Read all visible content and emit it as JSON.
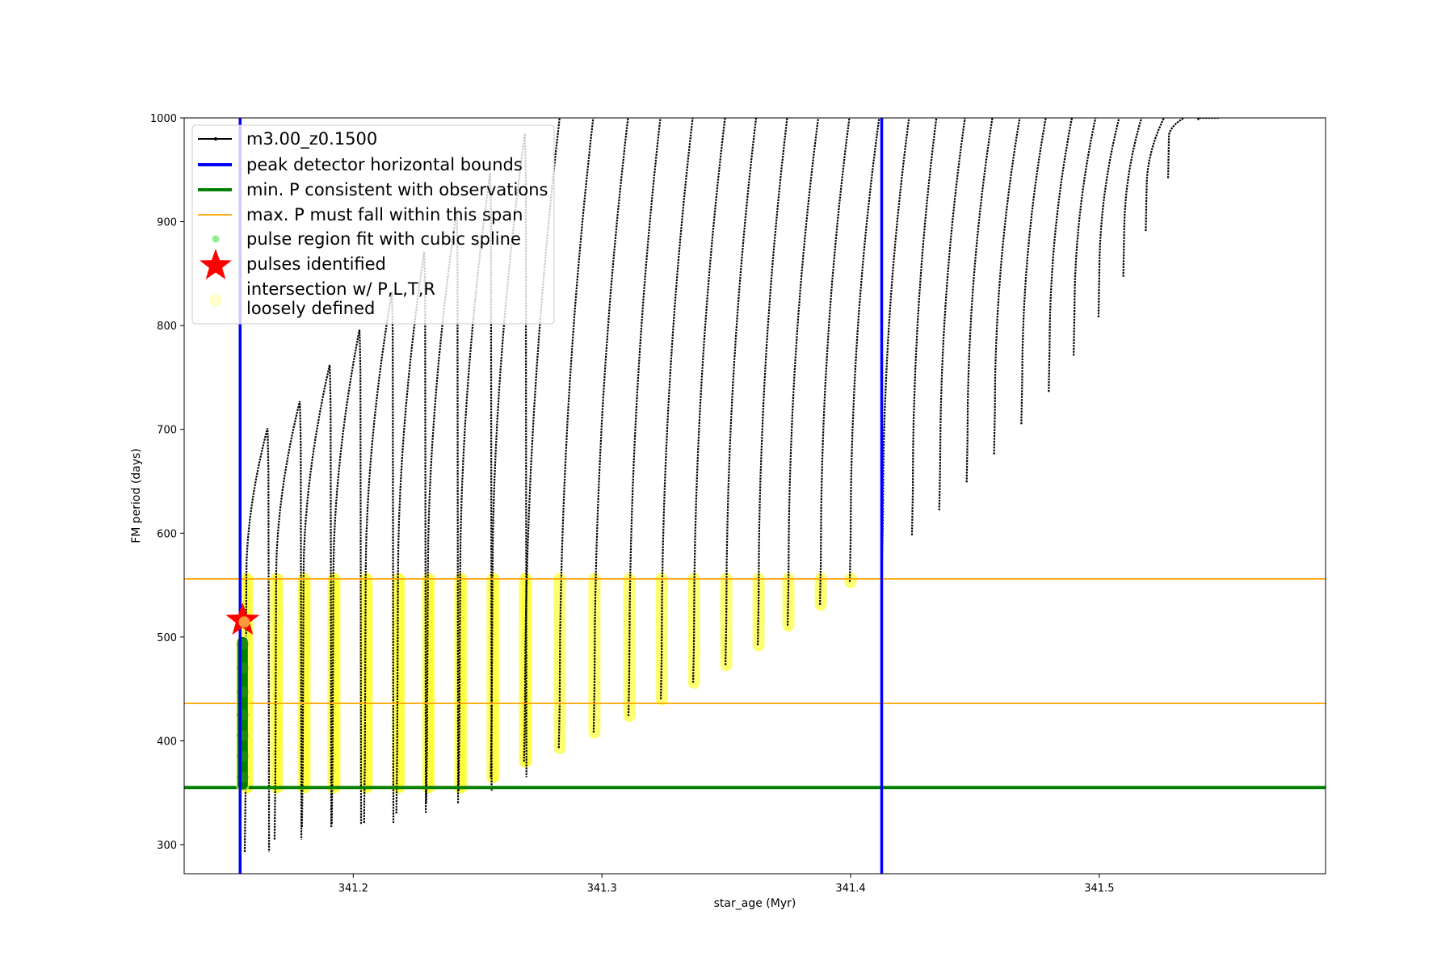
{
  "chart_data": {
    "type": "line",
    "title": "",
    "xlabel": "star_age (Myr)",
    "ylabel": "FM period (days)",
    "xlim": [
      341.132,
      341.591
    ],
    "ylim": [
      272,
      1000
    ],
    "xticks": [
      341.2,
      341.3,
      341.4,
      341.5
    ],
    "xtick_labels": [
      "341.2",
      "341.3",
      "341.4",
      "341.5"
    ],
    "yticks": [
      300,
      400,
      500,
      600,
      700,
      800,
      900,
      1000
    ],
    "ytick_labels": [
      "300",
      "400",
      "500",
      "600",
      "700",
      "800",
      "900",
      "1000"
    ],
    "grid": false,
    "legend_position": "top-left",
    "series": [
      {
        "name": "m3.00_z0.1500",
        "kind": "line-with-dots",
        "color": "#000000",
        "cycles": [
          {
            "start": 341.157,
            "peak": 341.1655,
            "max": 701,
            "min": 293
          },
          {
            "start": 341.169,
            "peak": 341.1785,
            "max": 727,
            "min": 305
          },
          {
            "start": 341.18,
            "peak": 341.1905,
            "max": 762,
            "min": 317
          },
          {
            "start": 341.192,
            "peak": 341.2025,
            "max": 796,
            "min": 320
          },
          {
            "start": 341.205,
            "peak": 341.2155,
            "max": 832,
            "min": 321
          },
          {
            "start": 341.218,
            "peak": 341.2285,
            "max": 871,
            "min": 330
          },
          {
            "start": 341.23,
            "peak": 341.2415,
            "max": 910,
            "min": 340
          },
          {
            "start": 341.243,
            "peak": 341.255,
            "max": 947,
            "min": 352
          },
          {
            "start": 341.256,
            "peak": 341.269,
            "max": 985,
            "min": 365
          },
          {
            "start": 341.269,
            "peak": 341.283,
            "max": 1000,
            "min": 380
          },
          {
            "start": 341.283,
            "peak": 341.2965,
            "max": 1000,
            "min": 393
          },
          {
            "start": 341.297,
            "peak": 341.3105,
            "max": 1000,
            "min": 408
          },
          {
            "start": 341.311,
            "peak": 341.3235,
            "max": 1000,
            "min": 424
          },
          {
            "start": 341.324,
            "peak": 341.3365,
            "max": 1000,
            "min": 440
          },
          {
            "start": 341.337,
            "peak": 341.3495,
            "max": 1000,
            "min": 456
          },
          {
            "start": 341.35,
            "peak": 341.362,
            "max": 1000,
            "min": 473
          },
          {
            "start": 341.363,
            "peak": 341.3745,
            "max": 1000,
            "min": 492
          },
          {
            "start": 341.375,
            "peak": 341.387,
            "max": 1000,
            "min": 511
          },
          {
            "start": 341.388,
            "peak": 341.3995,
            "max": 1000,
            "min": 531
          },
          {
            "start": 341.4,
            "peak": 341.4115,
            "max": 1000,
            "min": 553
          },
          {
            "start": 341.413,
            "peak": 341.4235,
            "max": 1000,
            "min": 575
          },
          {
            "start": 341.425,
            "peak": 341.4345,
            "max": 1000,
            "min": 598
          },
          {
            "start": 341.436,
            "peak": 341.446,
            "max": 1000,
            "min": 622
          },
          {
            "start": 341.447,
            "peak": 341.457,
            "max": 1000,
            "min": 649
          },
          {
            "start": 341.458,
            "peak": 341.468,
            "max": 1000,
            "min": 676
          },
          {
            "start": 341.469,
            "peak": 341.4785,
            "max": 1000,
            "min": 705
          },
          {
            "start": 341.48,
            "peak": 341.489,
            "max": 1000,
            "min": 736
          },
          {
            "start": 341.49,
            "peak": 341.4985,
            "max": 1000,
            "min": 771
          },
          {
            "start": 341.5,
            "peak": 341.508,
            "max": 1000,
            "min": 808
          },
          {
            "start": 341.51,
            "peak": 341.517,
            "max": 1000,
            "min": 847
          },
          {
            "start": 341.519,
            "peak": 341.526,
            "max": 1000,
            "min": 891
          },
          {
            "start": 341.528,
            "peak": 341.534,
            "max": 1000,
            "min": 942
          },
          {
            "start": 341.54,
            "peak": 341.548,
            "max": 1000,
            "min": 998
          }
        ]
      },
      {
        "name": "peak detector horizontal bounds",
        "kind": "vline",
        "color": "#0000ff",
        "x": [
          341.1545,
          341.4125
        ]
      },
      {
        "name": "min. P consistent with observations",
        "kind": "hline",
        "color": "#007f00",
        "y": 355
      },
      {
        "name": "max. P must fall within this span",
        "kind": "hline",
        "color": "#ffa500",
        "y": [
          436,
          556
        ]
      },
      {
        "name": "pulse region fit with cubic spline",
        "kind": "scatter",
        "color": "#008000",
        "points": [
          [
            341.1555,
            493
          ],
          [
            341.1555,
            470
          ],
          [
            341.1555,
            447
          ],
          [
            341.1555,
            425
          ],
          [
            341.1555,
            405
          ],
          [
            341.1555,
            385
          ],
          [
            341.1555,
            365
          ]
        ]
      },
      {
        "name": "pulses identified",
        "kind": "star",
        "color": "#ff0000",
        "points": [
          [
            341.1555,
            516
          ]
        ]
      },
      {
        "name": "intersection w/ P,L,T,R\nloosely defined",
        "kind": "band",
        "color": "#ffff00",
        "y_top": 556,
        "y_bottom": 355
      }
    ],
    "legend": [
      {
        "key": "line",
        "label": "m3.00_z0.1500",
        "color": "#000000"
      },
      {
        "key": "thick-line",
        "label": "peak detector horizontal bounds",
        "color": "#0000ff"
      },
      {
        "key": "thick-line",
        "label": "min. P consistent with observations",
        "color": "#007f00"
      },
      {
        "key": "thin-line",
        "label": "max. P must fall within this span",
        "color": "#ffa500"
      },
      {
        "key": "dot",
        "label": "pulse region fit with cubic spline",
        "color": "#90ee90"
      },
      {
        "key": "star",
        "label": "pulses identified",
        "color": "#ff0000"
      },
      {
        "key": "big-dot",
        "label": "intersection w/ P,L,T,R",
        "label2": "loosely defined",
        "color": "#ffffcc"
      }
    ]
  }
}
